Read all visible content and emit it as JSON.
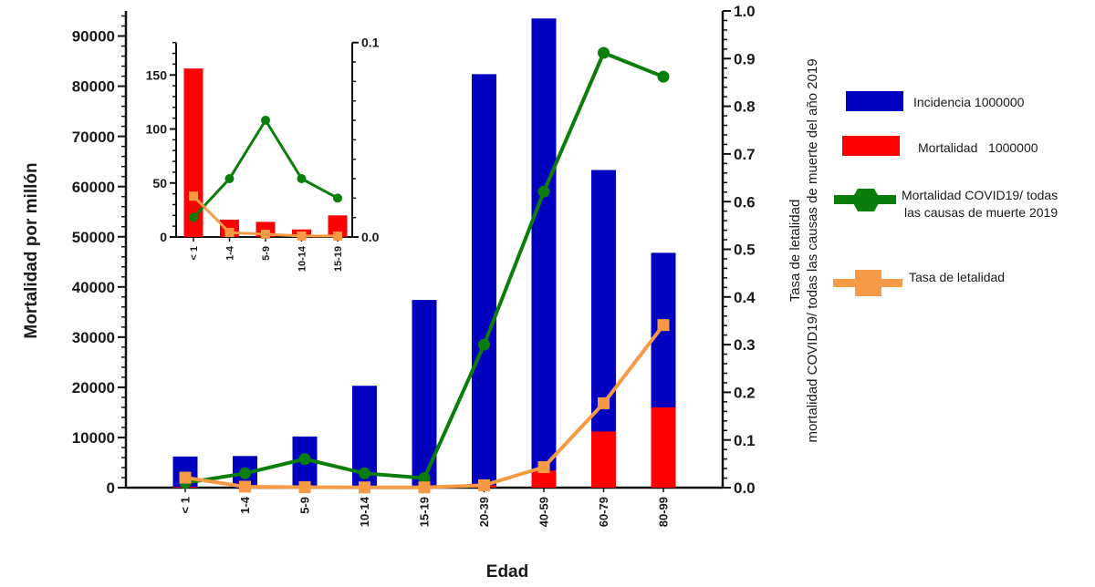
{
  "chart_data": [
    {
      "id": "main",
      "type": "bar",
      "title": "",
      "xlabel": "Edad",
      "ylabel": "Mortalidad por millón",
      "y2label_line1": "Tasa de letalidad",
      "y2label_line2": "mortalidad COVID19/ todas las causas de muerte del año 2019",
      "categories": [
        "< 1",
        "1-4",
        "5-9",
        "10-14",
        "15-19",
        "20-39",
        "40-59",
        "60-79",
        "80-99"
      ],
      "ylim": [
        0,
        95000
      ],
      "yticks": [
        0,
        10000,
        20000,
        30000,
        40000,
        50000,
        60000,
        70000,
        80000,
        90000
      ],
      "ytick_labels": [
        "0",
        "10000",
        "20000",
        "30000",
        "40000",
        "50000",
        "60000",
        "70000",
        "80000",
        "90000"
      ],
      "y2lim": [
        0,
        1.0
      ],
      "y2ticks": [
        0,
        0.1,
        0.2,
        0.3,
        0.4,
        0.5,
        0.6,
        0.7,
        0.8,
        0.9,
        1.0
      ],
      "y2tick_labels": [
        "0.0",
        "0.1",
        "0.2",
        "0.3",
        "0.4",
        "0.5",
        "0.6",
        "0.7",
        "0.8",
        "0.9",
        "1.0"
      ],
      "grid": false,
      "series": [
        {
          "name": "Incidencia 1000000",
          "kind": "bar",
          "axis": "left",
          "color": "#0000bf",
          "values": [
            6200,
            6300,
            10200,
            20300,
            37400,
            82400,
            93500,
            63300,
            46800
          ]
        },
        {
          "name": "Mortalidad 1000000",
          "kind": "bar",
          "axis": "left",
          "color": "#ff0000",
          "values": [
            156,
            16,
            14,
            7,
            20,
            500,
            3400,
            11200,
            16000
          ]
        },
        {
          "name": "Mortalidad COVID19/ todas las causas de muerte 2019",
          "kind": "line",
          "axis": "right",
          "color": "#0a7d0a",
          "marker": "circle",
          "values": [
            0.01,
            0.03,
            0.06,
            0.03,
            0.02,
            0.3,
            0.621,
            0.912,
            0.862
          ]
        },
        {
          "name": "Tasa de letalidad",
          "kind": "line",
          "axis": "right",
          "color": "#f79a45",
          "marker": "square",
          "values": [
            0.021,
            0.002,
            0.001,
            0.0005,
            0.0005,
            0.005,
            0.043,
            0.177,
            0.341
          ]
        }
      ]
    },
    {
      "id": "inset",
      "type": "bar",
      "title": "",
      "categories": [
        "< 1",
        "1-4",
        "5-9",
        "10-14",
        "15-19"
      ],
      "ylim": [
        0,
        180
      ],
      "yticks": [
        0,
        50,
        100,
        150
      ],
      "ytick_labels": [
        "0",
        "50",
        "100",
        "150"
      ],
      "y2lim": [
        0,
        0.1
      ],
      "y2ticks": [
        0,
        0.1
      ],
      "y2tick_labels": [
        "0.0",
        "0.1"
      ],
      "grid": false,
      "series": [
        {
          "name": "Mortalidad 1000000",
          "kind": "bar",
          "axis": "left",
          "color": "#ff0000",
          "values": [
            156,
            16,
            14,
            7,
            20
          ]
        },
        {
          "name": "Mortalidad COVID19/ todas las causas de muerte 2019",
          "kind": "line",
          "axis": "right",
          "color": "#0a7d0a",
          "marker": "circle",
          "values": [
            0.01,
            0.03,
            0.06,
            0.03,
            0.02
          ]
        },
        {
          "name": "Tasa de letalidad",
          "kind": "line",
          "axis": "right",
          "color": "#f79a45",
          "marker": "square",
          "values": [
            0.021,
            0.0023,
            0.0014,
            0.0005,
            0.0005
          ]
        }
      ]
    }
  ],
  "legend": {
    "placement": "right",
    "items": [
      {
        "label_line1": "Incidencia 1000000",
        "label_line2": "",
        "swatch": "bar",
        "color": "#0000bf"
      },
      {
        "label_line1": "Mortalidad   1000000",
        "label_line2": "",
        "swatch": "bar",
        "color": "#ff0000"
      },
      {
        "label_line1": "Mortalidad COVID19/ todas",
        "label_line2": "las causas de muerte 2019",
        "swatch": "line-circle",
        "color": "#0a7d0a"
      },
      {
        "label_line1": "Tasa de letalidad",
        "label_line2": "",
        "swatch": "line-square",
        "color": "#f79a45"
      }
    ]
  }
}
